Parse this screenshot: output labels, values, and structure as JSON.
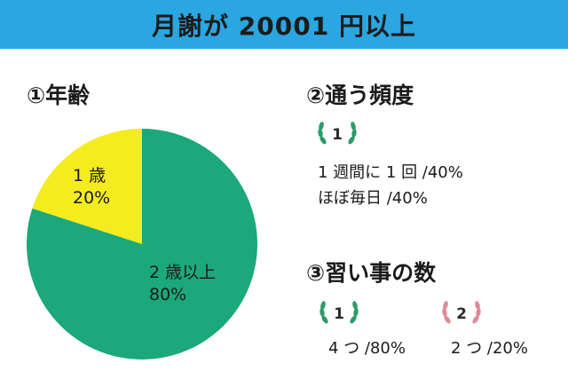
{
  "header": {
    "title": "月謝が 20001 円以上"
  },
  "sections": {
    "age": {
      "title": "①年齢"
    },
    "frequency": {
      "title": "②通う頻度",
      "rank_badge": "1",
      "items": [
        "1 週間に 1 回 /40%",
        "ほぼ毎日 /40%"
      ]
    },
    "lessons": {
      "title": "③習い事の数",
      "items": [
        {
          "rank": "1",
          "label": "4 つ /80%"
        },
        {
          "rank": "2",
          "label": "2 つ /20%"
        }
      ]
    }
  },
  "colors": {
    "header_bg": "#2aa6e0",
    "green": "#1ba87a",
    "yellow": "#f4ec1e",
    "laurel_green": "#2e9a6a",
    "laurel_pink": "#e08a95"
  },
  "chart_data": {
    "type": "pie",
    "title": "",
    "start_angle_deg": 0,
    "slices": [
      {
        "name": "1 歳",
        "percent_label": "20%",
        "value": 20,
        "color": "#f4ec1e"
      },
      {
        "name": "2 歳以上",
        "percent_label": "80%",
        "value": 80,
        "color": "#1ba87a"
      }
    ]
  }
}
